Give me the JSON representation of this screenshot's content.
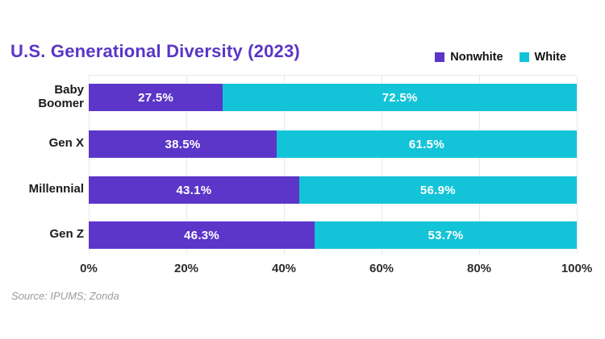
{
  "title": "U.S. Generational Diversity (2023)",
  "source": "Source: IPUMS; Zonda",
  "colors": {
    "title": "#5b35c6",
    "nonwhite": "#5b36c9",
    "white": "#13c4d8",
    "gridline": "#e8e8ec",
    "bar_label": "#ffffff",
    "axis_text": "#2d2d2d",
    "category_text": "#1a1a1a",
    "source_text": "#9a9a9a"
  },
  "legend": [
    {
      "label": "Nonwhite",
      "color": "#5b36c9"
    },
    {
      "label": "White",
      "color": "#13c4d8"
    }
  ],
  "chart_data": {
    "type": "bar",
    "orientation": "horizontal",
    "stacked": true,
    "title": "U.S. Generational Diversity (2023)",
    "categories": [
      "Baby Boomer",
      "Gen X",
      "Millennial",
      "Gen Z"
    ],
    "series": [
      {
        "name": "Nonwhite",
        "color": "#5b36c9",
        "values": [
          27.5,
          38.5,
          43.1,
          46.3
        ]
      },
      {
        "name": "White",
        "color": "#13c4d8",
        "values": [
          72.5,
          61.5,
          56.9,
          53.7
        ]
      }
    ],
    "value_label_format": "percent",
    "x_ticks": [
      "0%",
      "20%",
      "40%",
      "60%",
      "80%",
      "100%"
    ],
    "xlim": [
      0,
      100
    ],
    "grid": "vertical",
    "legend_position": "top-right"
  }
}
